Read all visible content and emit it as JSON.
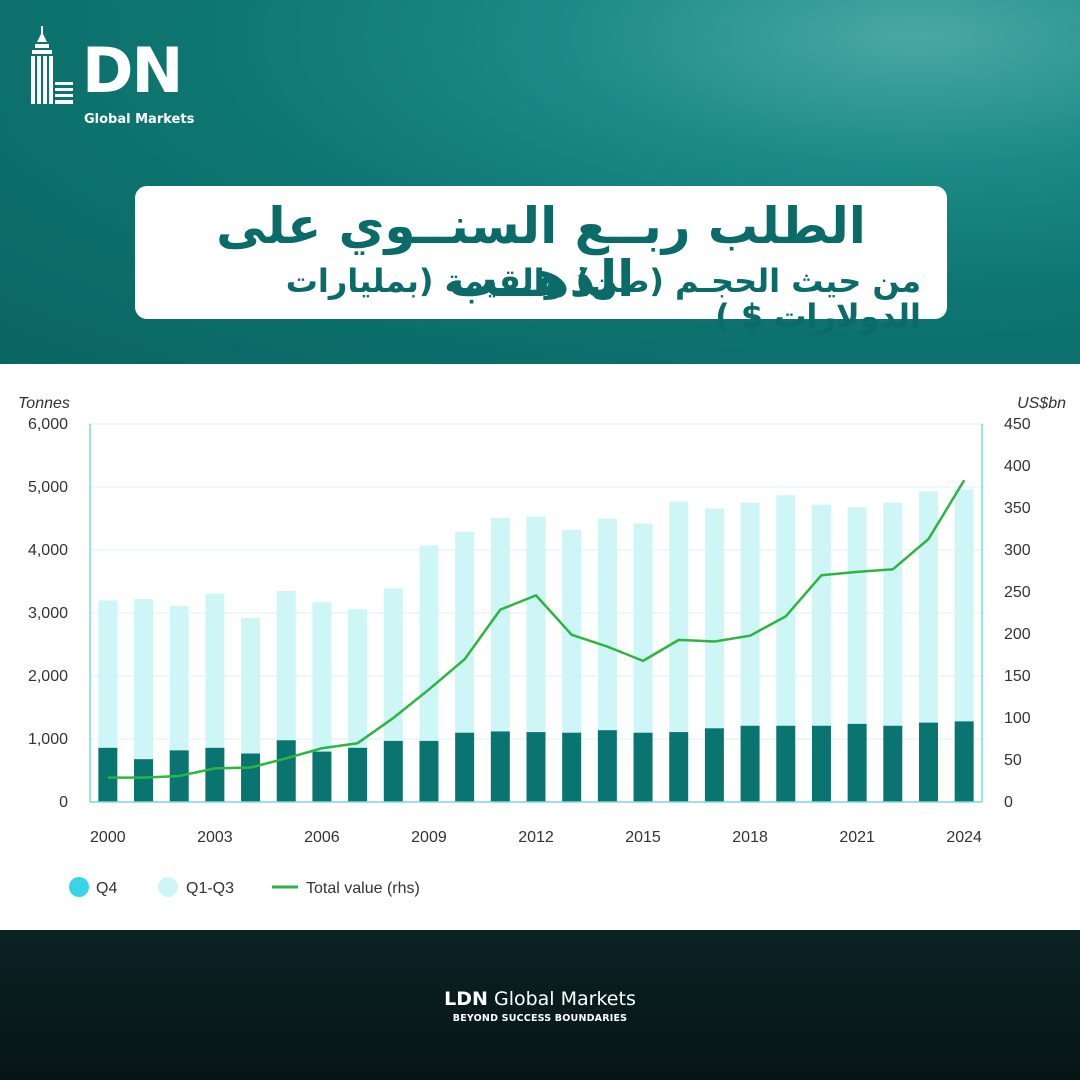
{
  "brand": {
    "logo_text": "DN",
    "logo_subtitle": "Global Markets",
    "footer_brand_bold": "LDN",
    "footer_brand_rest": " Global Markets",
    "footer_tagline": "BEYOND SUCCESS BOUNDARIES"
  },
  "header": {
    "title": "الطلب ربــع السنــوي على الذهــب",
    "subtitle": "من حيث الحجـم (طن) والقيمة (بمليارات الدولارات $ )"
  },
  "colors": {
    "brand_teal": "#0a6b68",
    "q4": "#0a7470",
    "q1q3": "#cff6f7",
    "line": "#2db443",
    "axis": "#7fd6db",
    "q4_legend": "#3ad3e8"
  },
  "chart_data": {
    "type": "bar",
    "title": "",
    "years": [
      2000,
      2001,
      2002,
      2003,
      2004,
      2005,
      2006,
      2007,
      2008,
      2009,
      2010,
      2011,
      2012,
      2013,
      2014,
      2015,
      2016,
      2017,
      2018,
      2019,
      2020,
      2021,
      2022,
      2023,
      2024
    ],
    "x_tick_labels": [
      "2000",
      "2003",
      "2006",
      "2009",
      "2012",
      "2015",
      "2018",
      "2021",
      "2024"
    ],
    "series": [
      {
        "name": "Q4",
        "axis": "left",
        "stack": "total",
        "values": [
          860,
          680,
          820,
          860,
          770,
          980,
          800,
          860,
          970,
          970,
          1100,
          1120,
          1110,
          1100,
          1140,
          1100,
          1110,
          1170,
          1210,
          1210,
          1210,
          1240,
          1210,
          1260,
          1280
        ]
      },
      {
        "name": "Q1-Q3",
        "axis": "left",
        "stack": "total",
        "values": [
          2340,
          2540,
          2290,
          2450,
          2150,
          2370,
          2370,
          2200,
          2420,
          3100,
          3190,
          3390,
          3420,
          3220,
          3360,
          3320,
          3660,
          3490,
          3540,
          3660,
          3510,
          3440,
          3540,
          3670,
          3680
        ]
      },
      {
        "name": "Total value (rhs)",
        "axis": "right",
        "type": "line",
        "values": [
          29,
          29,
          31,
          40,
          41,
          52,
          64,
          70,
          100,
          134,
          170,
          229,
          246,
          199,
          185,
          168,
          193,
          191,
          198,
          221,
          270,
          274,
          277,
          313,
          383
        ]
      }
    ],
    "y_left": {
      "label": "Tonnes",
      "range": [
        0,
        6000
      ],
      "ticks": [
        "0",
        "1,000",
        "2,000",
        "3,000",
        "4,000",
        "5,000",
        "6,000"
      ]
    },
    "y_right": {
      "label": "US$bn",
      "range": [
        0,
        450
      ],
      "ticks": [
        "0",
        "50",
        "100",
        "150",
        "200",
        "250",
        "300",
        "350",
        "400",
        "450"
      ]
    },
    "legend": {
      "position": "bottom-left",
      "items": [
        {
          "label": "Q4",
          "kind": "dot"
        },
        {
          "label": "Q1-Q3",
          "kind": "dot"
        },
        {
          "label": "Total value (rhs)",
          "kind": "line"
        }
      ]
    }
  }
}
